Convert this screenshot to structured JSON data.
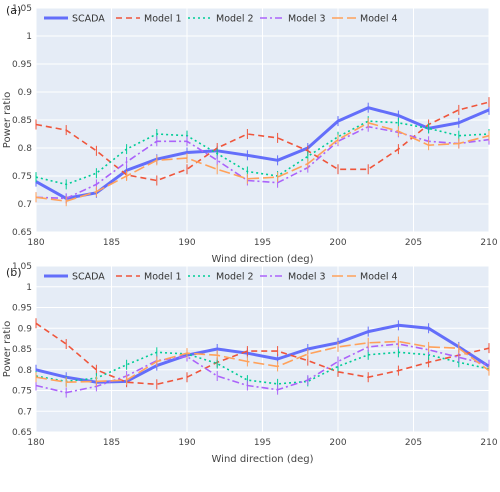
{
  "chart_data": [
    {
      "type": "line",
      "panel_label": "(a)",
      "xlabel": "Wind direction (deg)",
      "ylabel": "Power ratio",
      "xlim": [
        180,
        210
      ],
      "ylim": [
        0.65,
        1.05
      ],
      "xticks": [
        180,
        185,
        190,
        195,
        200,
        205,
        210
      ],
      "yticks": [
        0.65,
        0.7,
        0.75,
        0.8,
        0.85,
        0.9,
        0.95,
        1,
        1.05
      ],
      "grid": true,
      "legend_position": "top",
      "x": [
        180,
        182,
        184,
        186,
        188,
        190,
        192,
        194,
        196,
        198,
        200,
        202,
        204,
        206,
        208,
        210
      ],
      "series": [
        {
          "name": "SCADA",
          "color": "#636efa",
          "dash": "solid",
          "width": 3,
          "values": [
            0.74,
            0.71,
            0.72,
            0.76,
            0.78,
            0.792,
            0.795,
            0.787,
            0.778,
            0.8,
            0.848,
            0.872,
            0.858,
            0.835,
            0.845,
            0.868
          ]
        },
        {
          "name": "Model 1",
          "color": "#ef553b",
          "dash": "dash",
          "width": 1.6,
          "values": [
            0.842,
            0.832,
            0.795,
            0.752,
            0.742,
            0.762,
            0.8,
            0.825,
            0.818,
            0.795,
            0.762,
            0.762,
            0.798,
            0.842,
            0.868,
            0.882
          ]
        },
        {
          "name": "Model 2",
          "color": "#00cc96",
          "dash": "dot",
          "width": 1.6,
          "values": [
            0.748,
            0.735,
            0.755,
            0.798,
            0.825,
            0.822,
            0.79,
            0.758,
            0.75,
            0.785,
            0.82,
            0.848,
            0.845,
            0.835,
            0.822,
            0.825
          ]
        },
        {
          "name": "Model 3",
          "color": "#ab63fa",
          "dash": "dashdot",
          "width": 1.6,
          "values": [
            0.712,
            0.71,
            0.735,
            0.775,
            0.812,
            0.812,
            0.778,
            0.742,
            0.738,
            0.765,
            0.812,
            0.838,
            0.828,
            0.812,
            0.808,
            0.815
          ]
        },
        {
          "name": "Model 4",
          "color": "#ffa15a",
          "dash": "longdash",
          "width": 1.6,
          "values": [
            0.712,
            0.705,
            0.722,
            0.75,
            0.778,
            0.782,
            0.762,
            0.745,
            0.748,
            0.772,
            0.815,
            0.845,
            0.83,
            0.805,
            0.808,
            0.822
          ]
        }
      ]
    },
    {
      "type": "line",
      "panel_label": "(b)",
      "xlabel": "Wind direction (deg)",
      "ylabel": "Power ratio",
      "xlim": [
        180,
        210
      ],
      "ylim": [
        0.65,
        1.05
      ],
      "xticks": [
        180,
        185,
        190,
        195,
        200,
        205,
        210
      ],
      "yticks": [
        0.65,
        0.7,
        0.75,
        0.8,
        0.85,
        0.9,
        0.95,
        1,
        1.05
      ],
      "grid": true,
      "legend_position": "top",
      "x": [
        180,
        182,
        184,
        186,
        188,
        190,
        192,
        194,
        196,
        198,
        200,
        202,
        204,
        206,
        208,
        210
      ],
      "series": [
        {
          "name": "SCADA",
          "color": "#636efa",
          "dash": "solid",
          "width": 3,
          "values": [
            0.8,
            0.782,
            0.77,
            0.772,
            0.81,
            0.835,
            0.85,
            0.84,
            0.826,
            0.85,
            0.865,
            0.892,
            0.907,
            0.9,
            0.855,
            0.808
          ]
        },
        {
          "name": "Model 1",
          "color": "#ef553b",
          "dash": "dash",
          "width": 1.6,
          "values": [
            0.912,
            0.862,
            0.8,
            0.77,
            0.765,
            0.782,
            0.818,
            0.845,
            0.845,
            0.822,
            0.795,
            0.782,
            0.798,
            0.818,
            0.835,
            0.852
          ]
        },
        {
          "name": "Model 2",
          "color": "#00cc96",
          "dash": "dot",
          "width": 1.6,
          "values": [
            0.785,
            0.772,
            0.78,
            0.812,
            0.842,
            0.838,
            0.815,
            0.775,
            0.766,
            0.772,
            0.808,
            0.836,
            0.842,
            0.836,
            0.818,
            0.802
          ]
        },
        {
          "name": "Model 3",
          "color": "#ab63fa",
          "dash": "dashdot",
          "width": 1.6,
          "values": [
            0.762,
            0.745,
            0.76,
            0.785,
            0.822,
            0.832,
            0.785,
            0.762,
            0.752,
            0.775,
            0.82,
            0.855,
            0.862,
            0.848,
            0.83,
            0.812
          ]
        },
        {
          "name": "Model 4",
          "color": "#ffa15a",
          "dash": "longdash",
          "width": 1.6,
          "values": [
            0.782,
            0.77,
            0.772,
            0.775,
            0.82,
            0.84,
            0.835,
            0.82,
            0.808,
            0.838,
            0.855,
            0.865,
            0.868,
            0.855,
            0.852,
            0.798
          ]
        }
      ]
    }
  ]
}
